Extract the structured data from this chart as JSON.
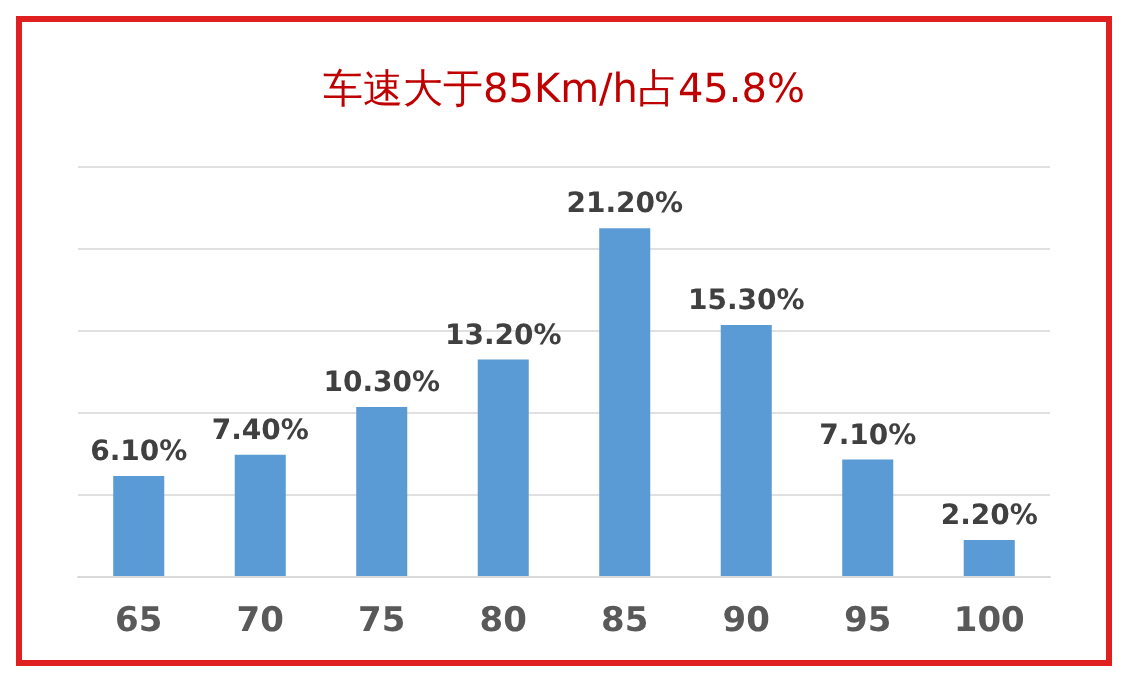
{
  "chart_data": {
    "type": "bar",
    "title": "车速大于85Km/h占45.8%",
    "categories": [
      "65",
      "70",
      "75",
      "80",
      "85",
      "90",
      "95",
      "100"
    ],
    "values": [
      6.1,
      7.4,
      10.3,
      13.2,
      21.2,
      15.3,
      7.1,
      2.2
    ],
    "value_labels": [
      "6.10%",
      "7.40%",
      "10.30%",
      "13.20%",
      "21.20%",
      "15.30%",
      "7.10%",
      "2.20%"
    ],
    "color": "#5b9bd5",
    "ylim": [
      0,
      25
    ],
    "yticks": [
      {
        "value": 0,
        "label": null
      },
      {
        "value": 5,
        "label": null
      },
      {
        "value": 10,
        "label": null
      },
      {
        "value": 15,
        "label": null
      },
      {
        "value": 20,
        "label": null
      },
      {
        "value": 25,
        "label": null
      }
    ],
    "grid": "y",
    "tick_labels": "x"
  }
}
